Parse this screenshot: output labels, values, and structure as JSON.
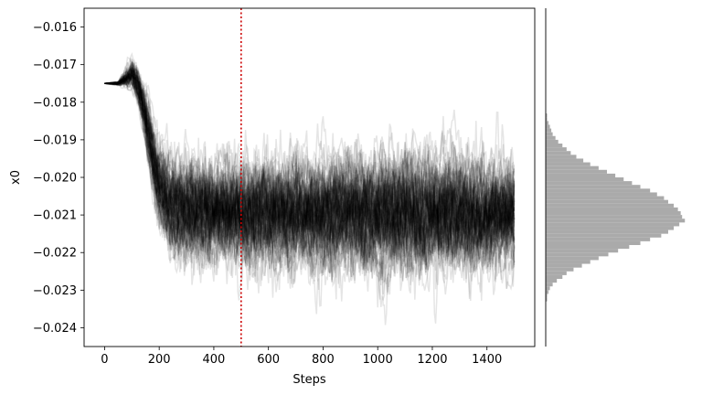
{
  "chart_data": [
    {
      "type": "line",
      "title": "",
      "xlabel": "Steps",
      "ylabel": "x0",
      "xlim": [
        -75,
        1575
      ],
      "ylim": [
        -0.0245,
        -0.0155
      ],
      "x_ticks": [
        0,
        200,
        400,
        600,
        800,
        1000,
        1200,
        1400
      ],
      "x_tick_labels": [
        "0",
        "200",
        "400",
        "600",
        "800",
        "1000",
        "1200",
        "1400"
      ],
      "y_ticks": [
        -0.016,
        -0.017,
        -0.018,
        -0.019,
        -0.02,
        -0.021,
        -0.022,
        -0.023,
        -0.024
      ],
      "y_tick_labels": [
        "−0.016",
        "−0.017",
        "−0.018",
        "−0.019",
        "−0.020",
        "−0.021",
        "−0.022",
        "−0.023",
        "−0.024"
      ],
      "grid": false,
      "legend": "none",
      "series_color": "#000000",
      "series_alpha": 0.1,
      "n_walkers": 100,
      "n_steps": 1500,
      "initial_value": -0.0175,
      "burn_in_step": 500,
      "burn_in_line_color": "#cc0000",
      "trace_envelope": {
        "step": [
          0,
          50,
          100,
          125,
          150,
          175,
          200,
          250,
          300,
          400,
          500,
          700,
          900,
          1100,
          1300,
          1500
        ],
        "mean": [
          -0.0175,
          -0.0175,
          -0.01725,
          -0.0176,
          -0.0184,
          -0.0194,
          -0.0203,
          -0.0208,
          -0.0209,
          -0.0209,
          -0.02095,
          -0.02095,
          -0.021,
          -0.021,
          -0.021,
          -0.021
        ],
        "upper": [
          -0.0175,
          -0.0174,
          -0.0163,
          -0.0165,
          -0.0172,
          -0.0181,
          -0.0185,
          -0.0186,
          -0.0186,
          -0.0185,
          -0.0183,
          -0.0182,
          -0.0183,
          -0.0182,
          -0.0182,
          -0.0183
        ],
        "lower": [
          -0.0175,
          -0.0176,
          -0.0177,
          -0.0184,
          -0.0199,
          -0.0216,
          -0.0227,
          -0.0232,
          -0.0237,
          -0.0236,
          -0.0235,
          -0.0236,
          -0.0238,
          -0.024,
          -0.0238,
          -0.0233
        ]
      }
    },
    {
      "type": "bar",
      "orientation": "horizontal",
      "title": "",
      "bar_color": "#aaaaaa",
      "bin_edges": [
        -0.0233,
        -0.0232,
        -0.0231,
        -0.023,
        -0.0229,
        -0.0228,
        -0.0227,
        -0.0226,
        -0.0225,
        -0.0224,
        -0.0223,
        -0.0222,
        -0.0221,
        -0.022,
        -0.0219,
        -0.0218,
        -0.0217,
        -0.0216,
        -0.0215,
        -0.0214,
        -0.0213,
        -0.0212,
        -0.0211,
        -0.021,
        -0.0209,
        -0.0208,
        -0.0207,
        -0.0206,
        -0.0205,
        -0.0204,
        -0.0203,
        -0.0202,
        -0.0201,
        -0.02,
        -0.0199,
        -0.0198,
        -0.0197,
        -0.0196,
        -0.0195,
        -0.0194,
        -0.0193,
        -0.0192,
        -0.0191,
        -0.019,
        -0.0189,
        -0.0188,
        -0.0187,
        -0.0186,
        -0.0185,
        -0.0184,
        -0.0183
      ],
      "counts": [
        1,
        1,
        2,
        3,
        5,
        8,
        12,
        15,
        20,
        26,
        32,
        38,
        45,
        52,
        60,
        68,
        75,
        83,
        88,
        92,
        96,
        100,
        98,
        97,
        95,
        92,
        88,
        85,
        80,
        75,
        68,
        62,
        56,
        50,
        44,
        38,
        32,
        27,
        22,
        18,
        15,
        12,
        9,
        7,
        5,
        4,
        3,
        2,
        1,
        1
      ],
      "xlabel": "",
      "ylabel": "",
      "shared_y_with": 0
    }
  ]
}
